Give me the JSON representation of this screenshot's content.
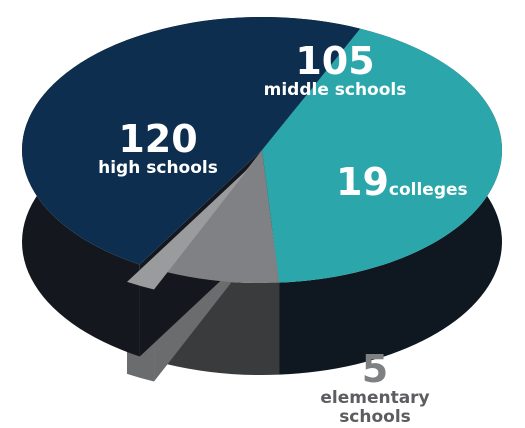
{
  "chart_data": {
    "type": "pie",
    "style": "3d-exploded",
    "slices": [
      {
        "label": "middle schools",
        "value": 105,
        "color": "#2ba6ab",
        "display_value": "105"
      },
      {
        "label": "colleges",
        "value": 19,
        "color": "#808184",
        "display_value": "19"
      },
      {
        "label": "elementary schools",
        "value": 5,
        "color": "#9a9b9d",
        "display_value": "5",
        "display_label_lines": [
          "elementary",
          "schools"
        ]
      },
      {
        "label": "high schools",
        "value": 120,
        "color": "#0e2e4f",
        "display_value": "120"
      }
    ]
  },
  "labels": {
    "high_value": "120",
    "high_text": "high schools",
    "middle_value": "105",
    "middle_text": "middle schools",
    "colleges_value": "19",
    "colleges_text": "colleges",
    "elementary_value": "5",
    "elementary_line1": "elementary",
    "elementary_line2": "schools"
  }
}
